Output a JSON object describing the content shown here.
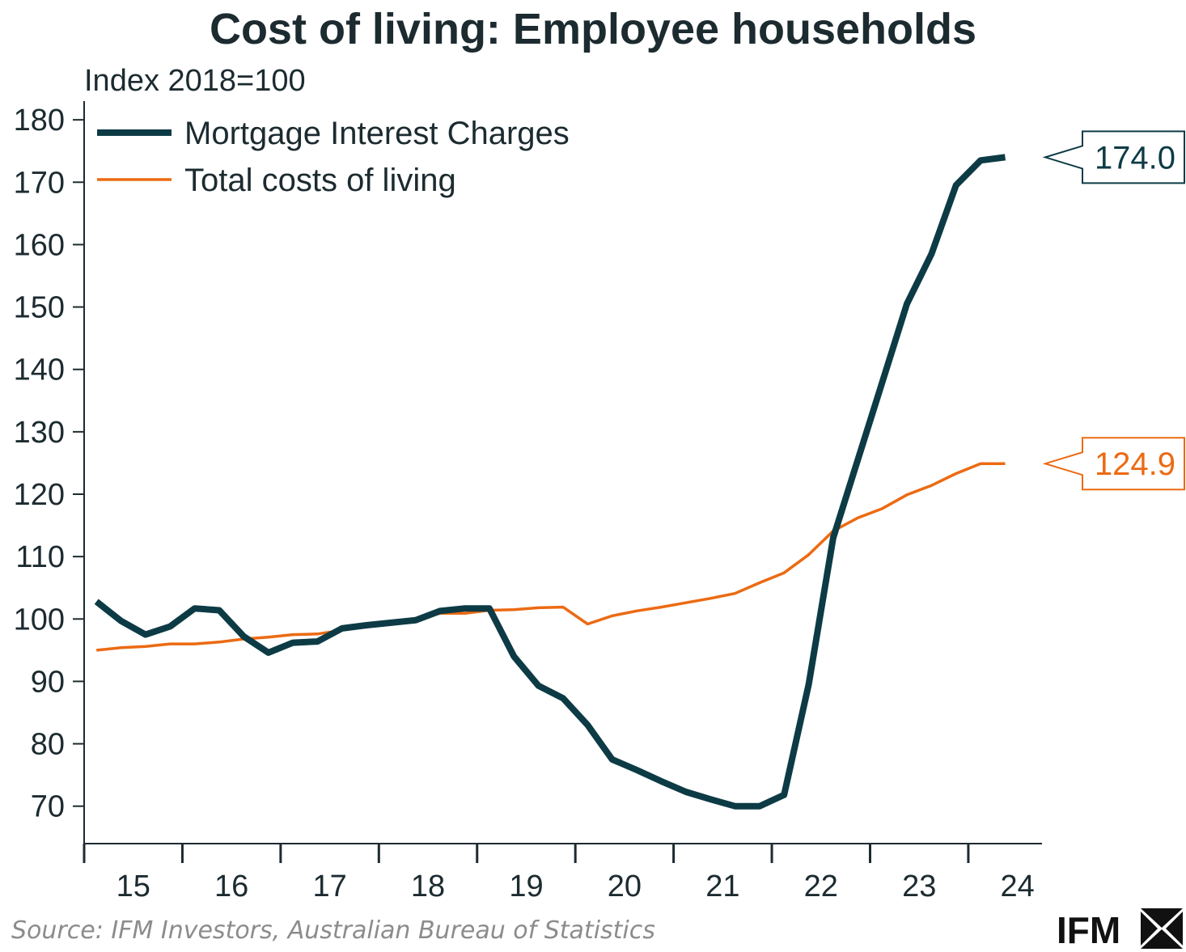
{
  "chart_data": {
    "type": "line",
    "title": "Cost of living: Employee households",
    "ylabel": "Index 2018=100",
    "xlabel": "",
    "ylim": [
      64,
      183
    ],
    "xlim": [
      15.0,
      24.75
    ],
    "yticks": [
      70,
      80,
      90,
      100,
      110,
      120,
      130,
      140,
      150,
      160,
      170,
      180
    ],
    "xtick_labels": [
      "15",
      "16",
      "17",
      "18",
      "19",
      "20",
      "21",
      "22",
      "23",
      "24"
    ],
    "legend_position": "top-left",
    "series": [
      {
        "name": "Mortgage Interest Charges",
        "color": "#0d3b45",
        "end_label": "174.0",
        "x": [
          15.125,
          15.375,
          15.625,
          15.875,
          16.125,
          16.375,
          16.625,
          16.875,
          17.125,
          17.375,
          17.625,
          17.875,
          18.125,
          18.375,
          18.625,
          18.875,
          19.125,
          19.375,
          19.625,
          19.875,
          20.125,
          20.375,
          20.625,
          20.875,
          21.125,
          21.375,
          21.625,
          21.875,
          22.125,
          22.375,
          22.625,
          22.875,
          23.125,
          23.375,
          23.625,
          23.875,
          24.125,
          24.375
        ],
        "values": [
          102.8,
          99.7,
          97.5,
          98.8,
          101.7,
          101.4,
          97.2,
          94.6,
          96.2,
          96.4,
          98.5,
          99.0,
          99.4,
          99.8,
          101.3,
          101.7,
          101.7,
          94.0,
          89.3,
          87.3,
          83.0,
          77.5,
          75.8,
          74.0,
          72.3,
          71.1,
          70.0,
          70.0,
          71.8,
          89.5,
          113.0,
          125.5,
          138.0,
          150.5,
          158.5,
          169.5,
          173.5,
          174.0
        ]
      },
      {
        "name": "Total costs of living",
        "color": "#ec6a12",
        "end_label": "124.9",
        "x": [
          15.125,
          15.375,
          15.625,
          15.875,
          16.125,
          16.375,
          16.625,
          16.875,
          17.125,
          17.375,
          17.625,
          17.875,
          18.125,
          18.375,
          18.625,
          18.875,
          19.125,
          19.375,
          19.625,
          19.875,
          20.125,
          20.375,
          20.625,
          20.875,
          21.125,
          21.375,
          21.625,
          21.875,
          22.125,
          22.375,
          22.625,
          22.875,
          23.125,
          23.375,
          23.625,
          23.875,
          24.125,
          24.375
        ],
        "values": [
          95.0,
          95.4,
          95.6,
          96.0,
          96.0,
          96.3,
          96.8,
          97.1,
          97.5,
          97.6,
          98.2,
          98.9,
          99.6,
          100.1,
          100.9,
          100.9,
          101.4,
          101.5,
          101.8,
          101.9,
          99.2,
          100.5,
          101.3,
          101.9,
          102.6,
          103.3,
          104.1,
          105.8,
          107.4,
          110.3,
          114.1,
          116.2,
          117.7,
          119.9,
          121.4,
          123.3,
          124.9,
          124.9
        ]
      }
    ]
  },
  "footer": {
    "source": "Source: IFM Investors, Australian Bureau of Statistics",
    "logo": "IFM"
  }
}
